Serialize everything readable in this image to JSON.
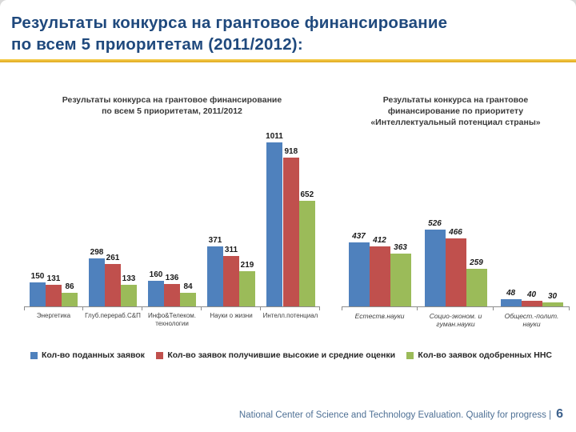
{
  "slide": {
    "title_lines": [
      "Результаты конкурса на грантовое финансирование",
      "по всем 5 приоритетам (2011/2012):"
    ],
    "footer_text": "National Center of Science and Technology Evaluation. Quality for progress |",
    "page_number": "6"
  },
  "colors": {
    "title_blue": "#1F497D",
    "accent_gold": "#E9B42C",
    "series_blue": "#4F81BD",
    "series_red": "#C0504D",
    "series_green": "#9BBB59",
    "footer_blue": "#4E7095"
  },
  "legend": {
    "items": [
      {
        "label": "Кол-во поданных заявок",
        "color": "#4F81BD"
      },
      {
        "label": "Кол-во заявок получившие высокие и средние оценки",
        "color": "#C0504D"
      },
      {
        "label": "Кол-во заявок одобренных ННС",
        "color": "#9BBB59"
      }
    ]
  },
  "chart_data": [
    {
      "type": "bar",
      "title": "Результаты конкурса на грантовое финансирование по всем 5 приоритетам, 2011/2012",
      "title_lines": [
        "Результаты конкурса на грантовое финансирование",
        "по всем 5 приоритетам, 2011/2012"
      ],
      "categories": [
        "Энергетика",
        "Глуб.перераб.С&П",
        "Инфо&Телеком.\nтехнологии",
        "Науки о жизни",
        "Интелл.потенциал"
      ],
      "series": [
        {
          "name": "Кол-во поданных заявок",
          "color": "#4F81BD",
          "values": [
            150,
            298,
            160,
            371,
            1011
          ]
        },
        {
          "name": "Кол-во заявок получившие высокие и средние оценки",
          "color": "#C0504D",
          "values": [
            131,
            261,
            136,
            311,
            918
          ]
        },
        {
          "name": "Кол-во заявок одобренных ННС",
          "color": "#9BBB59",
          "values": [
            86,
            133,
            84,
            219,
            652
          ]
        }
      ],
      "data_labels": true,
      "grid": false,
      "ylim": [
        0,
        1060
      ],
      "legend_position": "shared-bottom"
    },
    {
      "type": "bar",
      "title": "Результаты конкурса на грантовое финансирование по приоритету «Интеллектуальный потенциал страны»",
      "title_lines": [
        "Результаты конкурса на грантовое",
        "финансирование по приоритету",
        "«Интеллектуальный потенциал страны»"
      ],
      "categories": [
        "Естеств.науки",
        "Социо-эконом. и\nгуман.науки",
        "Общест.-полит.\nнауки"
      ],
      "series": [
        {
          "name": "Кол-во поданных заявок",
          "color": "#4F81BD",
          "values": [
            437,
            526,
            48
          ]
        },
        {
          "name": "Кол-во заявок получившие высокие и средние оценки",
          "color": "#C0504D",
          "values": [
            412,
            466,
            40
          ]
        },
        {
          "name": "Кол-во заявок одобренных ННС",
          "color": "#9BBB59",
          "values": [
            363,
            259,
            30
          ]
        }
      ],
      "data_labels": true,
      "grid": false,
      "ylim": [
        0,
        1180
      ],
      "legend_position": "shared-bottom"
    }
  ]
}
